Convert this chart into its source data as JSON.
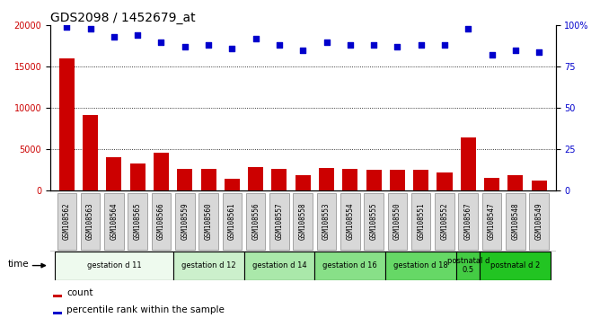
{
  "title": "GDS2098 / 1452679_at",
  "samples": [
    "GSM108562",
    "GSM108563",
    "GSM108564",
    "GSM108565",
    "GSM108566",
    "GSM108559",
    "GSM108560",
    "GSM108561",
    "GSM108556",
    "GSM108557",
    "GSM108558",
    "GSM108553",
    "GSM108554",
    "GSM108555",
    "GSM108550",
    "GSM108551",
    "GSM108552",
    "GSM108567",
    "GSM108547",
    "GSM108548",
    "GSM108549"
  ],
  "counts": [
    16000,
    9200,
    4100,
    3300,
    4600,
    2700,
    2600,
    1500,
    2900,
    2600,
    1900,
    2800,
    2700,
    2500,
    2500,
    2500,
    2200,
    6400,
    1600,
    1900,
    1200
  ],
  "percentiles": [
    99,
    98,
    93,
    94,
    90,
    87,
    88,
    86,
    92,
    88,
    85,
    90,
    88,
    88,
    87,
    88,
    88,
    98,
    82,
    85,
    84
  ],
  "groups": [
    {
      "label": "gestation d 11",
      "start": 0,
      "end": 5,
      "color": "#eefaee"
    },
    {
      "label": "gestation d 12",
      "start": 5,
      "end": 8,
      "color": "#ccf0cc"
    },
    {
      "label": "gestation d 14",
      "start": 8,
      "end": 11,
      "color": "#aae8aa"
    },
    {
      "label": "gestation d 16",
      "start": 11,
      "end": 14,
      "color": "#88e088"
    },
    {
      "label": "gestation d 18",
      "start": 14,
      "end": 17,
      "color": "#66d866"
    },
    {
      "label": "postnatal d\n0.5",
      "start": 17,
      "end": 18,
      "color": "#44cc44"
    },
    {
      "label": "postnatal d 2",
      "start": 18,
      "end": 21,
      "color": "#22c422"
    }
  ],
  "bar_color": "#cc0000",
  "dot_color": "#0000cc",
  "ylim_left": [
    0,
    20000
  ],
  "ylim_right": [
    0,
    100
  ],
  "yticks_left": [
    0,
    5000,
    10000,
    15000,
    20000
  ],
  "yticks_right": [
    0,
    25,
    50,
    75,
    100
  ],
  "yticklabels_right": [
    "0",
    "25",
    "50",
    "75",
    "100%"
  ],
  "grid_values": [
    5000,
    10000,
    15000
  ],
  "title_fontsize": 10,
  "tick_fontsize": 7,
  "bar_width": 0.65
}
